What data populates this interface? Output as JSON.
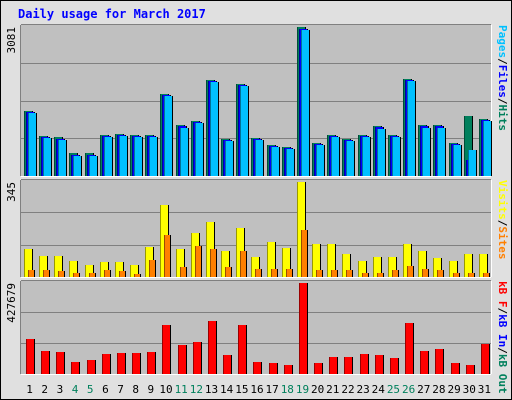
{
  "chart_data": {
    "type": "bar",
    "title": "Daily usage for March 2017",
    "days": [
      "1",
      "2",
      "3",
      "4",
      "5",
      "6",
      "7",
      "8",
      "9",
      "10",
      "11",
      "12",
      "13",
      "14",
      "15",
      "16",
      "17",
      "18",
      "19",
      "20",
      "21",
      "22",
      "23",
      "24",
      "25",
      "26",
      "27",
      "28",
      "29",
      "30",
      "31"
    ],
    "weekend_days": [
      "4",
      "5",
      "11",
      "12",
      "18",
      "19",
      "25",
      "26"
    ],
    "panels": [
      {
        "name": "pages-files-hits",
        "max_label": "3081",
        "ymax": 3081,
        "legend": [
          {
            "label": "Pages",
            "color": "#00c0ff"
          },
          {
            "label": "/",
            "color": "#000000"
          },
          {
            "label": "Files",
            "color": "#0000ff"
          },
          {
            "label": "/",
            "color": "#000000"
          },
          {
            "label": "Hits",
            "color": "#00805c"
          }
        ],
        "series": [
          {
            "name": "Hits",
            "color": "#00805c",
            "values": [
              1342,
              837,
              797,
              466,
              466,
              856,
              878,
              856,
              856,
              1704,
              1047,
              1143,
              1987,
              766,
              1911,
              788,
              649,
              606,
              3071,
              689,
              856,
              766,
              856,
              1025,
              856,
              2010,
              1047,
              1047,
              680,
              1246,
              1178
            ]
          },
          {
            "name": "Files",
            "color": "#0000ff",
            "values": [
              1320,
              815,
              775,
              444,
              444,
              834,
              856,
              834,
              834,
              1682,
              1025,
              1121,
              1965,
              744,
              1889,
              766,
              627,
              584,
              3049,
              667,
              834,
              744,
              834,
              1003,
              834,
              1988,
              1025,
              1025,
              658,
              330,
              1156
            ]
          },
          {
            "name": "Pages",
            "color": "#00c0ff",
            "values": [
              1297,
              790,
              750,
              420,
              420,
              810,
              830,
              810,
              810,
              1660,
              1000,
              1095,
              1940,
              720,
              1866,
              740,
              600,
              560,
              3025,
              640,
              810,
              720,
              810,
              980,
              810,
              1965,
              1000,
              1000,
              632,
              542,
              1130
            ]
          }
        ]
      },
      {
        "name": "visits-sites",
        "max_label": "345",
        "ymax": 345,
        "legend": [
          {
            "label": "Visits",
            "color": "#ffff00"
          },
          {
            "label": "/",
            "color": "#000000"
          },
          {
            "label": "Sites",
            "color": "#ff8000"
          }
        ],
        "series": [
          {
            "name": "Visits",
            "color": "#ffff00",
            "values": [
              102,
              75,
              75,
              58,
              42,
              53,
              53,
              42,
              109,
              262,
              102,
              158,
              200,
              94,
              177,
              73,
              126,
              106,
              345,
              119,
              119,
              84,
              58,
              73,
              73,
              119,
              94,
              69,
              58,
              84,
              84
            ]
          },
          {
            "name": "Sites",
            "color": "#ff8000",
            "values": [
              26,
              26,
              20,
              16,
              16,
              26,
              20,
              10,
              60,
              154,
              36,
              112,
              102,
              36,
              93,
              30,
              30,
              30,
              172,
              26,
              26,
              26,
              16,
              16,
              26,
              40,
              30,
              26,
              16,
              16,
              16
            ]
          }
        ]
      },
      {
        "name": "kbytes",
        "max_label": "427679",
        "ymax": 427679,
        "legend": [
          {
            "label": "kB F",
            "color": "#ff0000"
          },
          {
            "label": "/",
            "color": "#000000"
          },
          {
            "label": "kB In",
            "color": "#0000ff"
          },
          {
            "label": "/",
            "color": "#000000"
          },
          {
            "label": "kB Out",
            "color": "#00805c"
          }
        ],
        "series": [
          {
            "name": "kB F",
            "color": "#ff0000",
            "values": [
              166000,
              108000,
              104000,
              56000,
              65000,
              96000,
              101000,
              101000,
              104000,
              228000,
              136000,
              149000,
              251000,
              87000,
              228000,
              56000,
              51000,
              42000,
              427679,
              51000,
              79000,
              79000,
              96000,
              90000,
              76000,
              238000,
              110000,
              117000,
              51000,
              42000,
              139000
            ]
          }
        ]
      }
    ]
  }
}
